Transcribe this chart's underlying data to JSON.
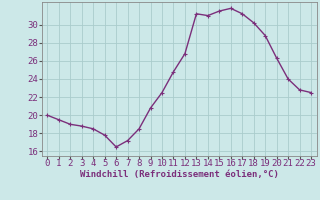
{
  "x": [
    0,
    1,
    2,
    3,
    4,
    5,
    6,
    7,
    8,
    9,
    10,
    11,
    12,
    13,
    14,
    15,
    16,
    17,
    18,
    19,
    20,
    21,
    22,
    23
  ],
  "y": [
    20.0,
    19.5,
    19.0,
    18.8,
    18.5,
    17.8,
    16.5,
    17.2,
    18.5,
    20.8,
    22.5,
    24.8,
    26.8,
    31.2,
    31.0,
    31.5,
    31.8,
    31.2,
    30.2,
    28.8,
    26.3,
    24.0,
    22.8,
    22.5
  ],
  "line_color": "#7b2f7b",
  "marker": "+",
  "marker_size": 3,
  "bg_color": "#cce8e8",
  "grid_color": "#aacccc",
  "ylim": [
    15.5,
    32.5
  ],
  "xlim": [
    -0.5,
    23.5
  ],
  "yticks": [
    16,
    18,
    20,
    22,
    24,
    26,
    28,
    30
  ],
  "xticks": [
    0,
    1,
    2,
    3,
    4,
    5,
    6,
    7,
    8,
    9,
    10,
    11,
    12,
    13,
    14,
    15,
    16,
    17,
    18,
    19,
    20,
    21,
    22,
    23
  ],
  "tick_label_color": "#7b2f7b",
  "xlabel": "Windchill (Refroidissement éolien,°C)",
  "xlabel_color": "#7b2f7b",
  "xlabel_fontsize": 6.5,
  "tick_fontsize": 6.5,
  "line_width": 1.0
}
